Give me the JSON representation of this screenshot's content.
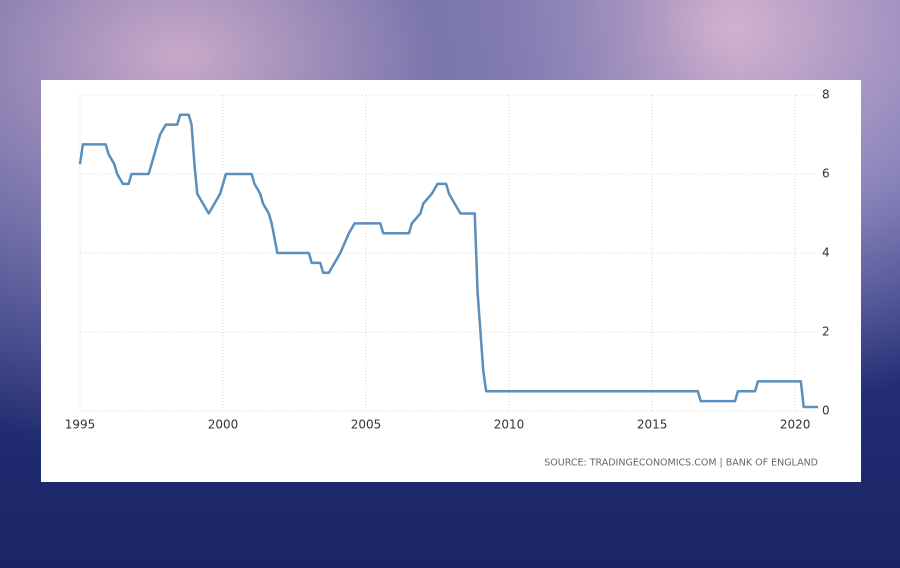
{
  "chart_data": {
    "type": "line",
    "source": "SOURCE: TRADINGECONOMICS.COM | BANK OF ENGLAND",
    "x": [
      1995.0,
      1995.1,
      1995.9,
      1996.0,
      1996.2,
      1996.3,
      1996.5,
      1996.7,
      1996.8,
      1997.4,
      1997.5,
      1997.6,
      1997.8,
      1998.0,
      1998.4,
      1998.5,
      1998.8,
      1998.9,
      1999.0,
      1999.1,
      1999.5,
      1999.7,
      1999.9,
      2000.1,
      2001.0,
      2001.1,
      2001.3,
      2001.4,
      2001.6,
      2001.7,
      2001.9,
      2003.0,
      2003.1,
      2003.4,
      2003.5,
      2003.7,
      2003.9,
      2004.1,
      2004.4,
      2004.6,
      2005.5,
      2005.6,
      2006.5,
      2006.6,
      2006.9,
      2007.0,
      2007.3,
      2007.5,
      2007.8,
      2007.9,
      2008.1,
      2008.3,
      2008.8,
      2008.9,
      2009.0,
      2009.1,
      2009.2,
      2016.6,
      2016.7,
      2017.9,
      2018.0,
      2018.6,
      2018.7,
      2020.2,
      2020.3,
      2020.8
    ],
    "series": [
      {
        "color": "#5b8fbc",
        "values": [
          6.25,
          6.75,
          6.75,
          6.5,
          6.25,
          6.0,
          5.75,
          5.75,
          6.0,
          6.0,
          6.25,
          6.5,
          7.0,
          7.25,
          7.25,
          7.5,
          7.5,
          7.25,
          6.25,
          5.5,
          5.0,
          5.25,
          5.5,
          6.0,
          6.0,
          5.75,
          5.5,
          5.25,
          5.0,
          4.75,
          4.0,
          4.0,
          3.75,
          3.75,
          3.5,
          3.5,
          3.75,
          4.0,
          4.5,
          4.75,
          4.75,
          4.5,
          4.5,
          4.75,
          5.0,
          5.25,
          5.5,
          5.75,
          5.75,
          5.5,
          5.25,
          5.0,
          5.0,
          3.0,
          2.0,
          1.0,
          0.5,
          0.5,
          0.25,
          0.25,
          0.5,
          0.5,
          0.75,
          0.75,
          0.1,
          0.1
        ]
      }
    ],
    "xlim": [
      1995,
      2020.8
    ],
    "xticks": [
      1995,
      2000,
      2005,
      2010,
      2015,
      2020
    ],
    "ylim": [
      0,
      8
    ],
    "yticks": [
      0,
      2,
      4,
      6,
      8
    ],
    "grid": true
  }
}
